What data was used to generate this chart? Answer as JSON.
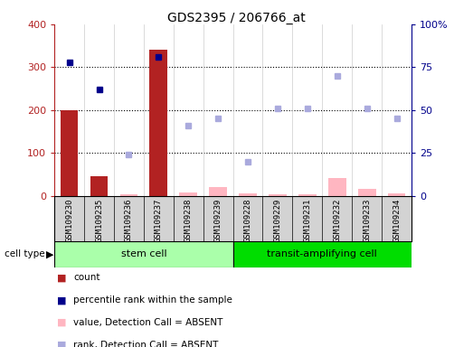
{
  "title": "GDS2395 / 206766_at",
  "samples": [
    "GSM109230",
    "GSM109235",
    "GSM109236",
    "GSM109237",
    "GSM109238",
    "GSM109239",
    "GSM109228",
    "GSM109229",
    "GSM109231",
    "GSM109232",
    "GSM109233",
    "GSM109234"
  ],
  "count_present": [
    200,
    47,
    null,
    340,
    null,
    null,
    null,
    null,
    null,
    null,
    null,
    null
  ],
  "count_absent": [
    null,
    null,
    5,
    null,
    8,
    20,
    7,
    5,
    5,
    42,
    17,
    7
  ],
  "percentile_present": [
    78,
    62,
    null,
    81,
    null,
    null,
    null,
    null,
    null,
    null,
    null,
    null
  ],
  "percentile_absent": [
    null,
    null,
    24,
    null,
    41,
    45,
    20,
    51,
    51,
    70,
    51,
    45
  ],
  "ylim_left": [
    0,
    400
  ],
  "ylim_right": [
    0,
    100
  ],
  "yticks_left": [
    0,
    100,
    200,
    300,
    400
  ],
  "ytick_labels_right": [
    "0",
    "25",
    "50",
    "75",
    "100%"
  ],
  "yticks_right": [
    0,
    25,
    50,
    75,
    100
  ],
  "bar_color_present": "#b22222",
  "bar_color_absent": "#ffb6c1",
  "dot_color_present": "#00008b",
  "dot_color_absent": "#aaaadd",
  "stem_cell_color": "#aaffaa",
  "transit_cell_color": "#00dd00",
  "legend_items": [
    {
      "label": "count",
      "color": "#b22222"
    },
    {
      "label": "percentile rank within the sample",
      "color": "#00008b"
    },
    {
      "label": "value, Detection Call = ABSENT",
      "color": "#ffb6c1"
    },
    {
      "label": "rank, Detection Call = ABSENT",
      "color": "#aaaadd"
    }
  ]
}
